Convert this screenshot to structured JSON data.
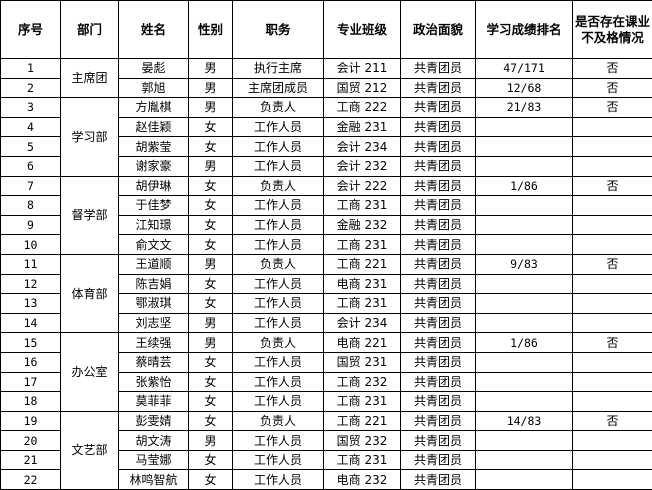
{
  "table": {
    "headers": [
      "序号",
      "部门",
      "姓名",
      "性别",
      "职务",
      "专业班级",
      "政治面貌",
      "学习成绩排名",
      "是否存在课业不及格情况"
    ],
    "departments": [
      {
        "name": "主席团",
        "rows": [
          [
            "1",
            "晏彪",
            "男",
            "执行主席",
            "会计 211",
            "共青团员",
            "47/171",
            "否"
          ],
          [
            "2",
            "郭旭",
            "男",
            "主席团成员",
            "国贸 212",
            "共青团员",
            "12/68",
            "否"
          ]
        ]
      },
      {
        "name": "学习部",
        "rows": [
          [
            "3",
            "方胤棋",
            "男",
            "负责人",
            "工商 222",
            "共青团员",
            "21/83",
            "否"
          ],
          [
            "4",
            "赵佳颖",
            "女",
            "工作人员",
            "金融 231",
            "共青团员",
            "",
            ""
          ],
          [
            "5",
            "胡紫莹",
            "女",
            "工作人员",
            "会计 234",
            "共青团员",
            "",
            ""
          ],
          [
            "6",
            "谢家豪",
            "男",
            "工作人员",
            "会计 232",
            "共青团员",
            "",
            ""
          ]
        ]
      },
      {
        "name": "督学部",
        "rows": [
          [
            "7",
            "胡伊琳",
            "女",
            "负责人",
            "会计 222",
            "共青团员",
            "1/86",
            "否"
          ],
          [
            "8",
            "于佳梦",
            "女",
            "工作人员",
            "工商 231",
            "共青团员",
            "",
            ""
          ],
          [
            "9",
            "江知璟",
            "女",
            "工作人员",
            "金融 232",
            "共青团员",
            "",
            ""
          ],
          [
            "10",
            "俞文文",
            "女",
            "工作人员",
            "工商 231",
            "共青团员",
            "",
            ""
          ]
        ]
      },
      {
        "name": "体育部",
        "rows": [
          [
            "11",
            "王道顺",
            "男",
            "负责人",
            "工商 221",
            "共青团员",
            "9/83",
            "否"
          ],
          [
            "12",
            "陈吉娟",
            "女",
            "工作人员",
            "电商 231",
            "共青团员",
            "",
            ""
          ],
          [
            "13",
            "鄂淑琪",
            "女",
            "工作人员",
            "工商 231",
            "共青团员",
            "",
            ""
          ],
          [
            "14",
            "刘志坚",
            "男",
            "工作人员",
            "会计 234",
            "共青团员",
            "",
            ""
          ]
        ]
      },
      {
        "name": "办公室",
        "rows": [
          [
            "15",
            "王续强",
            "男",
            "负责人",
            "电商 221",
            "共青团员",
            "1/86",
            "否"
          ],
          [
            "16",
            "蔡晴芸",
            "女",
            "工作人员",
            "国贸 231",
            "共青团员",
            "",
            ""
          ],
          [
            "17",
            "张紫怡",
            "女",
            "工作人员",
            "工商 232",
            "共青团员",
            "",
            ""
          ],
          [
            "18",
            "莫菲菲",
            "女",
            "工作人员",
            "工商 231",
            "共青团员",
            "",
            ""
          ]
        ]
      },
      {
        "name": "文艺部",
        "rows": [
          [
            "19",
            "彭雯婧",
            "女",
            "负责人",
            "工商 221",
            "共青团员",
            "14/83",
            "否"
          ],
          [
            "20",
            "胡文涛",
            "男",
            "工作人员",
            "国贸 232",
            "共青团员",
            "",
            ""
          ],
          [
            "21",
            "马莹娜",
            "女",
            "工作人员",
            "工商 231",
            "共青团员",
            "",
            ""
          ],
          [
            "22",
            "林鸣智航",
            "女",
            "工作人员",
            "电商 232",
            "共青团员",
            "",
            ""
          ]
        ]
      }
    ]
  }
}
